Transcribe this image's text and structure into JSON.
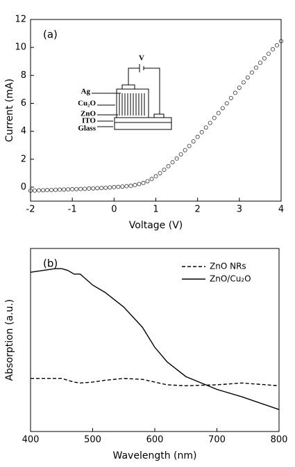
{
  "chart_data": [
    {
      "type": "scatter",
      "panel_label": "(a)",
      "xlabel": "Voltage (V)",
      "ylabel": "Current (mA)",
      "xlim": [
        -2,
        4
      ],
      "ylim": [
        -1,
        12
      ],
      "xticks": [
        -2,
        -1,
        0,
        1,
        2,
        3,
        4
      ],
      "yticks": [
        0,
        2,
        4,
        6,
        8,
        10,
        12
      ],
      "inset_labels": {
        "bias": "V",
        "ag": "Ag",
        "cu2o": "Cu₂O",
        "zno": "ZnO",
        "ito": "ITO",
        "glass": "Glass"
      },
      "x": [
        -2.0,
        -1.9,
        -1.8,
        -1.7,
        -1.6,
        -1.5,
        -1.4,
        -1.3,
        -1.2,
        -1.1,
        -1.0,
        -0.9,
        -0.8,
        -0.7,
        -0.6,
        -0.5,
        -0.4,
        -0.3,
        -0.2,
        -0.1,
        0,
        0.1,
        0.2,
        0.3,
        0.4,
        0.5,
        0.6,
        0.7,
        0.8,
        0.9,
        1.0,
        1.1,
        1.2,
        1.3,
        1.4,
        1.5,
        1.6,
        1.7,
        1.8,
        1.9,
        2.0,
        2.1,
        2.2,
        2.3,
        2.4,
        2.5,
        2.6,
        2.7,
        2.8,
        2.9,
        3.0,
        3.1,
        3.2,
        3.3,
        3.4,
        3.5,
        3.6,
        3.7,
        3.8,
        3.9,
        4.0
      ],
      "values": [
        -0.25,
        -0.24,
        -0.23,
        -0.22,
        -0.21,
        -0.2,
        -0.19,
        -0.18,
        -0.17,
        -0.16,
        -0.15,
        -0.14,
        -0.13,
        -0.12,
        -0.1,
        -0.09,
        -0.07,
        -0.06,
        -0.04,
        -0.02,
        0,
        0.02,
        0.04,
        0.07,
        0.1,
        0.15,
        0.22,
        0.3,
        0.42,
        0.58,
        0.78,
        1.0,
        1.25,
        1.5,
        1.78,
        2.05,
        2.35,
        2.65,
        2.95,
        3.28,
        3.6,
        3.93,
        4.27,
        4.6,
        4.95,
        5.3,
        5.65,
        6.0,
        6.38,
        6.75,
        7.12,
        7.5,
        7.85,
        8.2,
        8.55,
        8.9,
        9.22,
        9.55,
        9.87,
        10.15,
        10.45
      ],
      "color": "#333333"
    },
    {
      "type": "line",
      "panel_label": "(b)",
      "xlabel": "Wavelength (nm)",
      "ylabel": "Absorption (a.u.)",
      "xlim": [
        400,
        800
      ],
      "ylim": [
        0,
        1
      ],
      "xticks": [
        400,
        500,
        600,
        700,
        800
      ],
      "legend": "upper right",
      "x": [
        400,
        420,
        440,
        450,
        460,
        470,
        480,
        500,
        520,
        550,
        580,
        600,
        620,
        650,
        700,
        740,
        800
      ],
      "series": [
        {
          "name": "ZnO NRs",
          "color": "#000000",
          "dash": true,
          "values": [
            0.29,
            0.29,
            0.29,
            0.29,
            0.28,
            0.27,
            0.265,
            0.27,
            0.28,
            0.29,
            0.285,
            0.27,
            0.255,
            0.25,
            0.255,
            0.265,
            0.25
          ]
        },
        {
          "name": "ZnO/Cu₂O",
          "color": "#000000",
          "dash": false,
          "values": [
            0.87,
            0.88,
            0.89,
            0.89,
            0.88,
            0.86,
            0.86,
            0.8,
            0.76,
            0.68,
            0.57,
            0.46,
            0.38,
            0.3,
            0.23,
            0.19,
            0.12
          ]
        }
      ]
    }
  ]
}
